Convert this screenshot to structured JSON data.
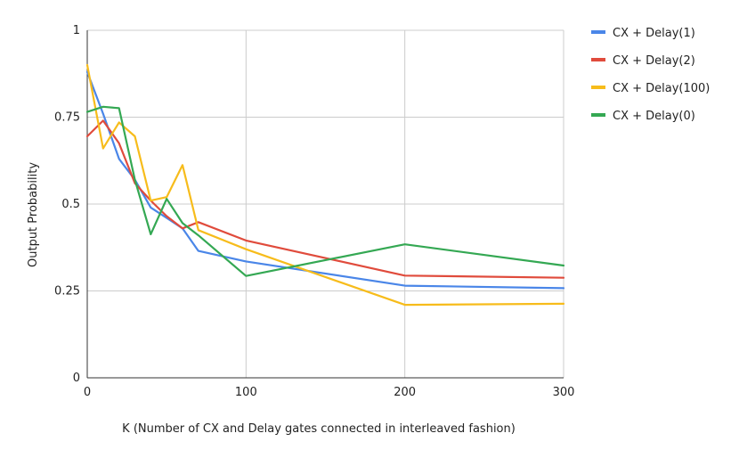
{
  "chart_data": {
    "type": "line",
    "xlabel": "K (Number of CX and Delay gates connected in interleaved fashion)",
    "ylabel": "Output Probability",
    "xlim": [
      0,
      300
    ],
    "ylim": [
      0,
      1
    ],
    "xticks": [
      0,
      100,
      200,
      300
    ],
    "yticks": [
      0,
      0.25,
      0.5,
      0.75,
      1
    ],
    "ytick_labels": [
      "0",
      "0.25",
      "0.5",
      "0.75",
      "1"
    ],
    "grid": true,
    "legend_position": "right",
    "series": [
      {
        "name": "CX + Delay(1)",
        "color": "#4a86e8",
        "x": [
          0,
          10,
          20,
          30,
          40,
          50,
          60,
          70,
          100,
          200,
          300
        ],
        "y": [
          0.88,
          0.76,
          0.63,
          0.57,
          0.49,
          0.46,
          0.43,
          0.365,
          0.335,
          0.265,
          0.258
        ]
      },
      {
        "name": "CX + Delay(2)",
        "color": "#e04b3c",
        "x": [
          0,
          10,
          20,
          30,
          40,
          50,
          60,
          70,
          100,
          200,
          300
        ],
        "y": [
          0.695,
          0.74,
          0.675,
          0.56,
          0.51,
          0.465,
          0.43,
          0.448,
          0.395,
          0.294,
          0.288
        ]
      },
      {
        "name": "CX + Delay(100)",
        "color": "#f7bc1b",
        "x": [
          0,
          10,
          20,
          30,
          40,
          50,
          60,
          70,
          100,
          200,
          300
        ],
        "y": [
          0.9,
          0.66,
          0.735,
          0.695,
          0.51,
          0.52,
          0.612,
          0.425,
          0.37,
          0.21,
          0.213
        ]
      },
      {
        "name": "CX + Delay(0)",
        "color": "#34a853",
        "x": [
          0,
          10,
          20,
          30,
          40,
          50,
          60,
          70,
          100,
          200,
          300
        ],
        "y": [
          0.765,
          0.78,
          0.776,
          0.57,
          0.413,
          0.515,
          0.445,
          0.41,
          0.293,
          0.384,
          0.323
        ]
      }
    ]
  }
}
